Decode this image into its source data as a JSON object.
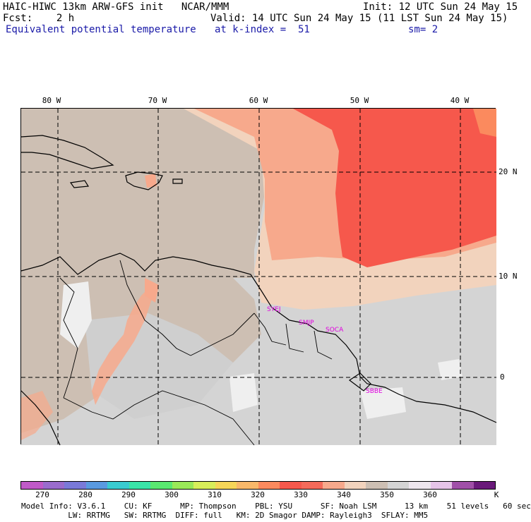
{
  "header": {
    "line1_left": "HAIC-HIWC 13km ARW-GFS init   NCAR/MMM",
    "line1_right": "Init: 12 UTC Sun 24 May 15",
    "line2_left": "Fcst:    2 h",
    "line2_right": "Valid: 14 UTC Sun 24 May 15 (11 LST Sun 24 May 15)",
    "line3_left": "Equivalent potential temperature",
    "line3_mid": "at k-index =  51",
    "line3_right": "sm= 2"
  },
  "map": {
    "lon_labels": [
      "80 W",
      "70 W",
      "60 W",
      "50 W",
      "40 W"
    ],
    "lat_labels": [
      "20 N",
      "10 N",
      "0"
    ],
    "stations": [
      "SYEJ",
      "SMJP",
      "SOCA",
      "SBBE"
    ],
    "colors": {
      "gray_light": "#d4d4d4",
      "tan": "#cdbfb3",
      "peach": "#f2d3bd",
      "salmon": "#f7a98c",
      "red": "#f6584c",
      "orange": "#fb8a5e",
      "white": "#efefef",
      "station": "#e000e0"
    }
  },
  "colorbar": {
    "colors": [
      "#c05ac8",
      "#9a6ccd",
      "#7a7ad8",
      "#5a9ae0",
      "#3acbd0",
      "#3ae4a8",
      "#5ae870",
      "#9ae858",
      "#d8ee5a",
      "#f6d658",
      "#f8b86a",
      "#fb8a5e",
      "#f6584c",
      "#f46a5a",
      "#f7a98c",
      "#f2d3bd",
      "#cdbfb3",
      "#d4d4d4",
      "#eee6ee",
      "#e6c4e8",
      "#a050a8",
      "#6a1a7a"
    ],
    "ticks": [
      "270",
      "280",
      "290",
      "300",
      "310",
      "320",
      "330",
      "340",
      "350",
      "360",
      "K"
    ]
  },
  "footer": {
    "line1": "Model Info: V3.6.1    CU: KF      MP: Thompson    PBL: YSU      SF: Noah LSM      13 km    51 levels   60 sec",
    "line2": "          LW: RRTMG   SW: RRTMG  DIFF: full   KM: 2D Smagor DAMP: Rayleigh3  SFLAY: MM5"
  }
}
